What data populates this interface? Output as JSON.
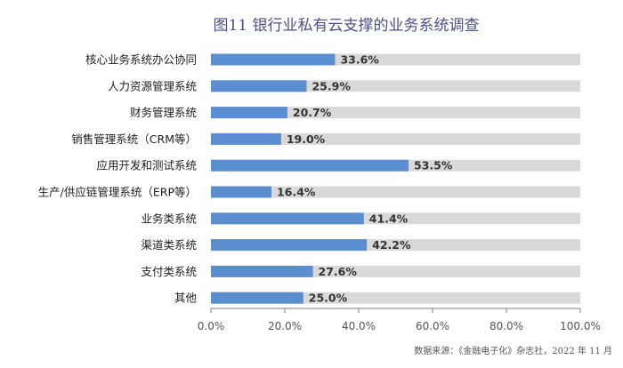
{
  "chart_data": {
    "type": "bar",
    "orientation": "horizontal",
    "title": "图11 银行业私有云支撑的业务系统调查",
    "categories": [
      "核心业务系统办公协同",
      "人力资源管理系统",
      "财务管理系统",
      "销售管理系统（CRM等）",
      "应用开发和测试系统",
      "生产/供应链管理系统（ERP等）",
      "业务类系统",
      "渠道类系统",
      "支付类系统",
      "其他"
    ],
    "values": [
      33.6,
      25.9,
      20.7,
      19.0,
      53.5,
      16.4,
      41.4,
      42.2,
      27.6,
      25.0
    ],
    "value_labels": [
      "33.6%",
      "25.9%",
      "20.7%",
      "19.0%",
      "53.5%",
      "16.4%",
      "41.4%",
      "42.2%",
      "27.6%",
      "25.0%"
    ],
    "xlim": [
      0,
      100
    ],
    "x_ticks": [
      0,
      20,
      40,
      60,
      80,
      100
    ],
    "x_tick_labels": [
      "0.0%",
      "20.0%",
      "40.0%",
      "60.0%",
      "80.0%",
      "100.0%"
    ],
    "xlabel": "",
    "ylabel": "",
    "grid": false,
    "colors": {
      "bar": "#5b8ed1",
      "track": "#d9d9d9",
      "title": "#4a4f86"
    },
    "source": "数据来源：《金融电子化》杂志社，2022 年 11 月"
  }
}
